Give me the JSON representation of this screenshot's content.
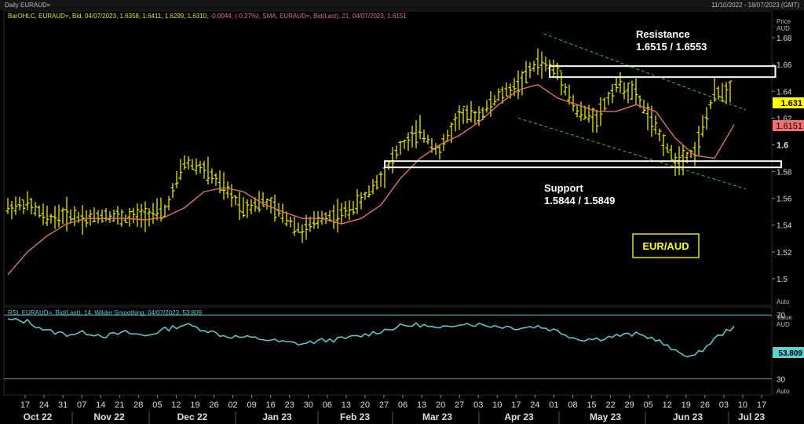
{
  "window": {
    "title": "Daily EURAUD=",
    "date_range": "11/10/2022 - 18/07/2023 (GMT)"
  },
  "price_panel": {
    "legend": "BarOHLC, EURAUD=, Bid, 04/07/2023, 1.6358, 1.6411, 1.6299, 1.6310, -0.0044, (-0.27%), SMA, EURAUD=, Bid(Last), 21, 04/07/2023, 1.6151",
    "legend_bar": "BarOHLC, EURAUD=, Bid, 04/07/2023, 1.6358, 1.6411, 1.6299, 1.6310, ",
    "legend_change": "-0.0044, (-0.27%),",
    "legend_sma": " SMA, EURAUD=, Bid(Last), 21, 04/07/2023, 1.6151",
    "axis_title": "Price",
    "axis_unit": "AUD",
    "auto_label": "Auto",
    "last_price_tag": "1.631",
    "sma_tag": "1.6151",
    "resistance_title": "Resistance",
    "resistance_values": "1.6515 / 1.6553",
    "support_title": "Support",
    "support_values": "1.5844 / 1.5849",
    "pair_badge": "EUR/AUD"
  },
  "rsi_panel": {
    "legend": "RSI, EURAUD=, Bid(Last), 14, Wilder Smoothing, 04/07/2023, 53.809",
    "axis_title": "Value",
    "axis_unit": "AUD",
    "auto_label": "Auto",
    "last_value_tag": "53.809"
  },
  "x_axis": {
    "day_labels": [
      "17",
      "24",
      "31",
      "07",
      "14",
      "21",
      "28",
      "05",
      "12",
      "19",
      "26",
      "02",
      "09",
      "16",
      "23",
      "30",
      "06",
      "13",
      "20",
      "27",
      "06",
      "13",
      "20",
      "27",
      "03",
      "10",
      "17",
      "24",
      "01",
      "08",
      "15",
      "22",
      "29",
      "05",
      "12",
      "19",
      "26",
      "03",
      "10",
      "17"
    ],
    "month_labels": [
      "Oct 22",
      "Nov 22",
      "Dec 22",
      "Jan 23",
      "Feb 23",
      "Mar 23",
      "Apr 23",
      "May 23",
      "Jun 23",
      "Jul 23"
    ]
  },
  "colors": {
    "bars": "#e6e600",
    "sma": "#e07070",
    "rsi": "#5fd0d0",
    "channel": "#3fbf3f",
    "badge_text": "#ffff00",
    "badge_border": "#ffff00",
    "last_price_bg": "#ffff00",
    "sma_tag_bg": "#f07070",
    "rsi_tag_bg": "#5fd0d0"
  },
  "chart_data": [
    {
      "type": "line",
      "series_kind": "ohlc_bar_and_sma_approx",
      "x_unit": "trading week (start date)",
      "x": [
        "2022-10-14",
        "2022-10-21",
        "2022-10-28",
        "2022-11-04",
        "2022-11-11",
        "2022-11-18",
        "2022-11-25",
        "2022-12-02",
        "2022-12-09",
        "2022-12-16",
        "2022-12-23",
        "2022-12-30",
        "2023-01-06",
        "2023-01-13",
        "2023-01-20",
        "2023-01-27",
        "2023-02-03",
        "2023-02-10",
        "2023-02-17",
        "2023-02-24",
        "2023-03-03",
        "2023-03-10",
        "2023-03-17",
        "2023-03-24",
        "2023-03-31",
        "2023-04-07",
        "2023-04-14",
        "2023-04-21",
        "2023-04-28",
        "2023-05-05",
        "2023-05-12",
        "2023-05-19",
        "2023-05-26",
        "2023-06-02",
        "2023-06-09",
        "2023-06-16",
        "2023-06-23",
        "2023-06-30"
      ],
      "series": [
        {
          "values": [
            1.553,
            1.556,
            1.545,
            1.548,
            1.545,
            1.548,
            1.545,
            1.548,
            1.55,
            1.587,
            1.582,
            1.568,
            1.553,
            1.558,
            1.548,
            1.535,
            1.546,
            1.548,
            1.558,
            1.576,
            1.598,
            1.61,
            1.595,
            1.622,
            1.622,
            1.636,
            1.645,
            1.662,
            1.655,
            1.625,
            1.62,
            1.645,
            1.638,
            1.612,
            1.588,
            1.595,
            1.638,
            1.642
          ]
        },
        {
          "values": [
            1.503,
            1.52,
            1.532,
            1.541,
            1.545,
            1.545,
            1.545,
            1.544,
            1.546,
            1.553,
            1.565,
            1.568,
            1.565,
            1.556,
            1.55,
            1.545,
            1.545,
            1.541,
            1.545,
            1.555,
            1.575,
            1.59,
            1.6,
            1.607,
            1.617,
            1.63,
            1.641,
            1.645,
            1.635,
            1.63,
            1.625,
            1.625,
            1.63,
            1.625,
            1.605,
            1.592,
            1.59,
            1.615
          ]
        }
      ],
      "ylim": [
        1.48,
        1.7
      ],
      "y_ticks": [
        1.5,
        1.52,
        1.54,
        1.56,
        1.58,
        1.6,
        1.62,
        1.64,
        1.66,
        1.68
      ],
      "resistance_zone": [
        1.6515,
        1.6553
      ],
      "support_zone": [
        1.5844,
        1.5849
      ],
      "last_price": 1.631,
      "sma_last": 1.6151,
      "grid": false
    },
    {
      "type": "line",
      "x_unit": "trading week (start date)",
      "x": [
        "2022-10-14",
        "2022-10-21",
        "2022-10-28",
        "2022-11-04",
        "2022-11-11",
        "2022-11-18",
        "2022-11-25",
        "2022-12-02",
        "2022-12-09",
        "2022-12-16",
        "2022-12-23",
        "2022-12-30",
        "2023-01-06",
        "2023-01-13",
        "2023-01-20",
        "2023-01-27",
        "2023-02-03",
        "2023-02-10",
        "2023-02-17",
        "2023-02-24",
        "2023-03-03",
        "2023-03-10",
        "2023-03-17",
        "2023-03-24",
        "2023-03-31",
        "2023-04-07",
        "2023-04-14",
        "2023-04-21",
        "2023-04-28",
        "2023-05-05",
        "2023-05-12",
        "2023-05-19",
        "2023-05-26",
        "2023-06-02",
        "2023-06-09",
        "2023-06-16",
        "2023-06-23",
        "2023-06-30"
      ],
      "series": [
        {
          "values": [
            67,
            66,
            60,
            58,
            59,
            57,
            59,
            57,
            61,
            64,
            61,
            57,
            56,
            55,
            53,
            52,
            54,
            55,
            57,
            60,
            63,
            64,
            61,
            65,
            64,
            63,
            62,
            63,
            60,
            55,
            55,
            57,
            58,
            55,
            47,
            44,
            55,
            63
          ]
        }
      ],
      "ylim": [
        20,
        75
      ],
      "reference_lines": [
        30,
        70
      ],
      "last_value": 53.809,
      "grid": false
    }
  ]
}
